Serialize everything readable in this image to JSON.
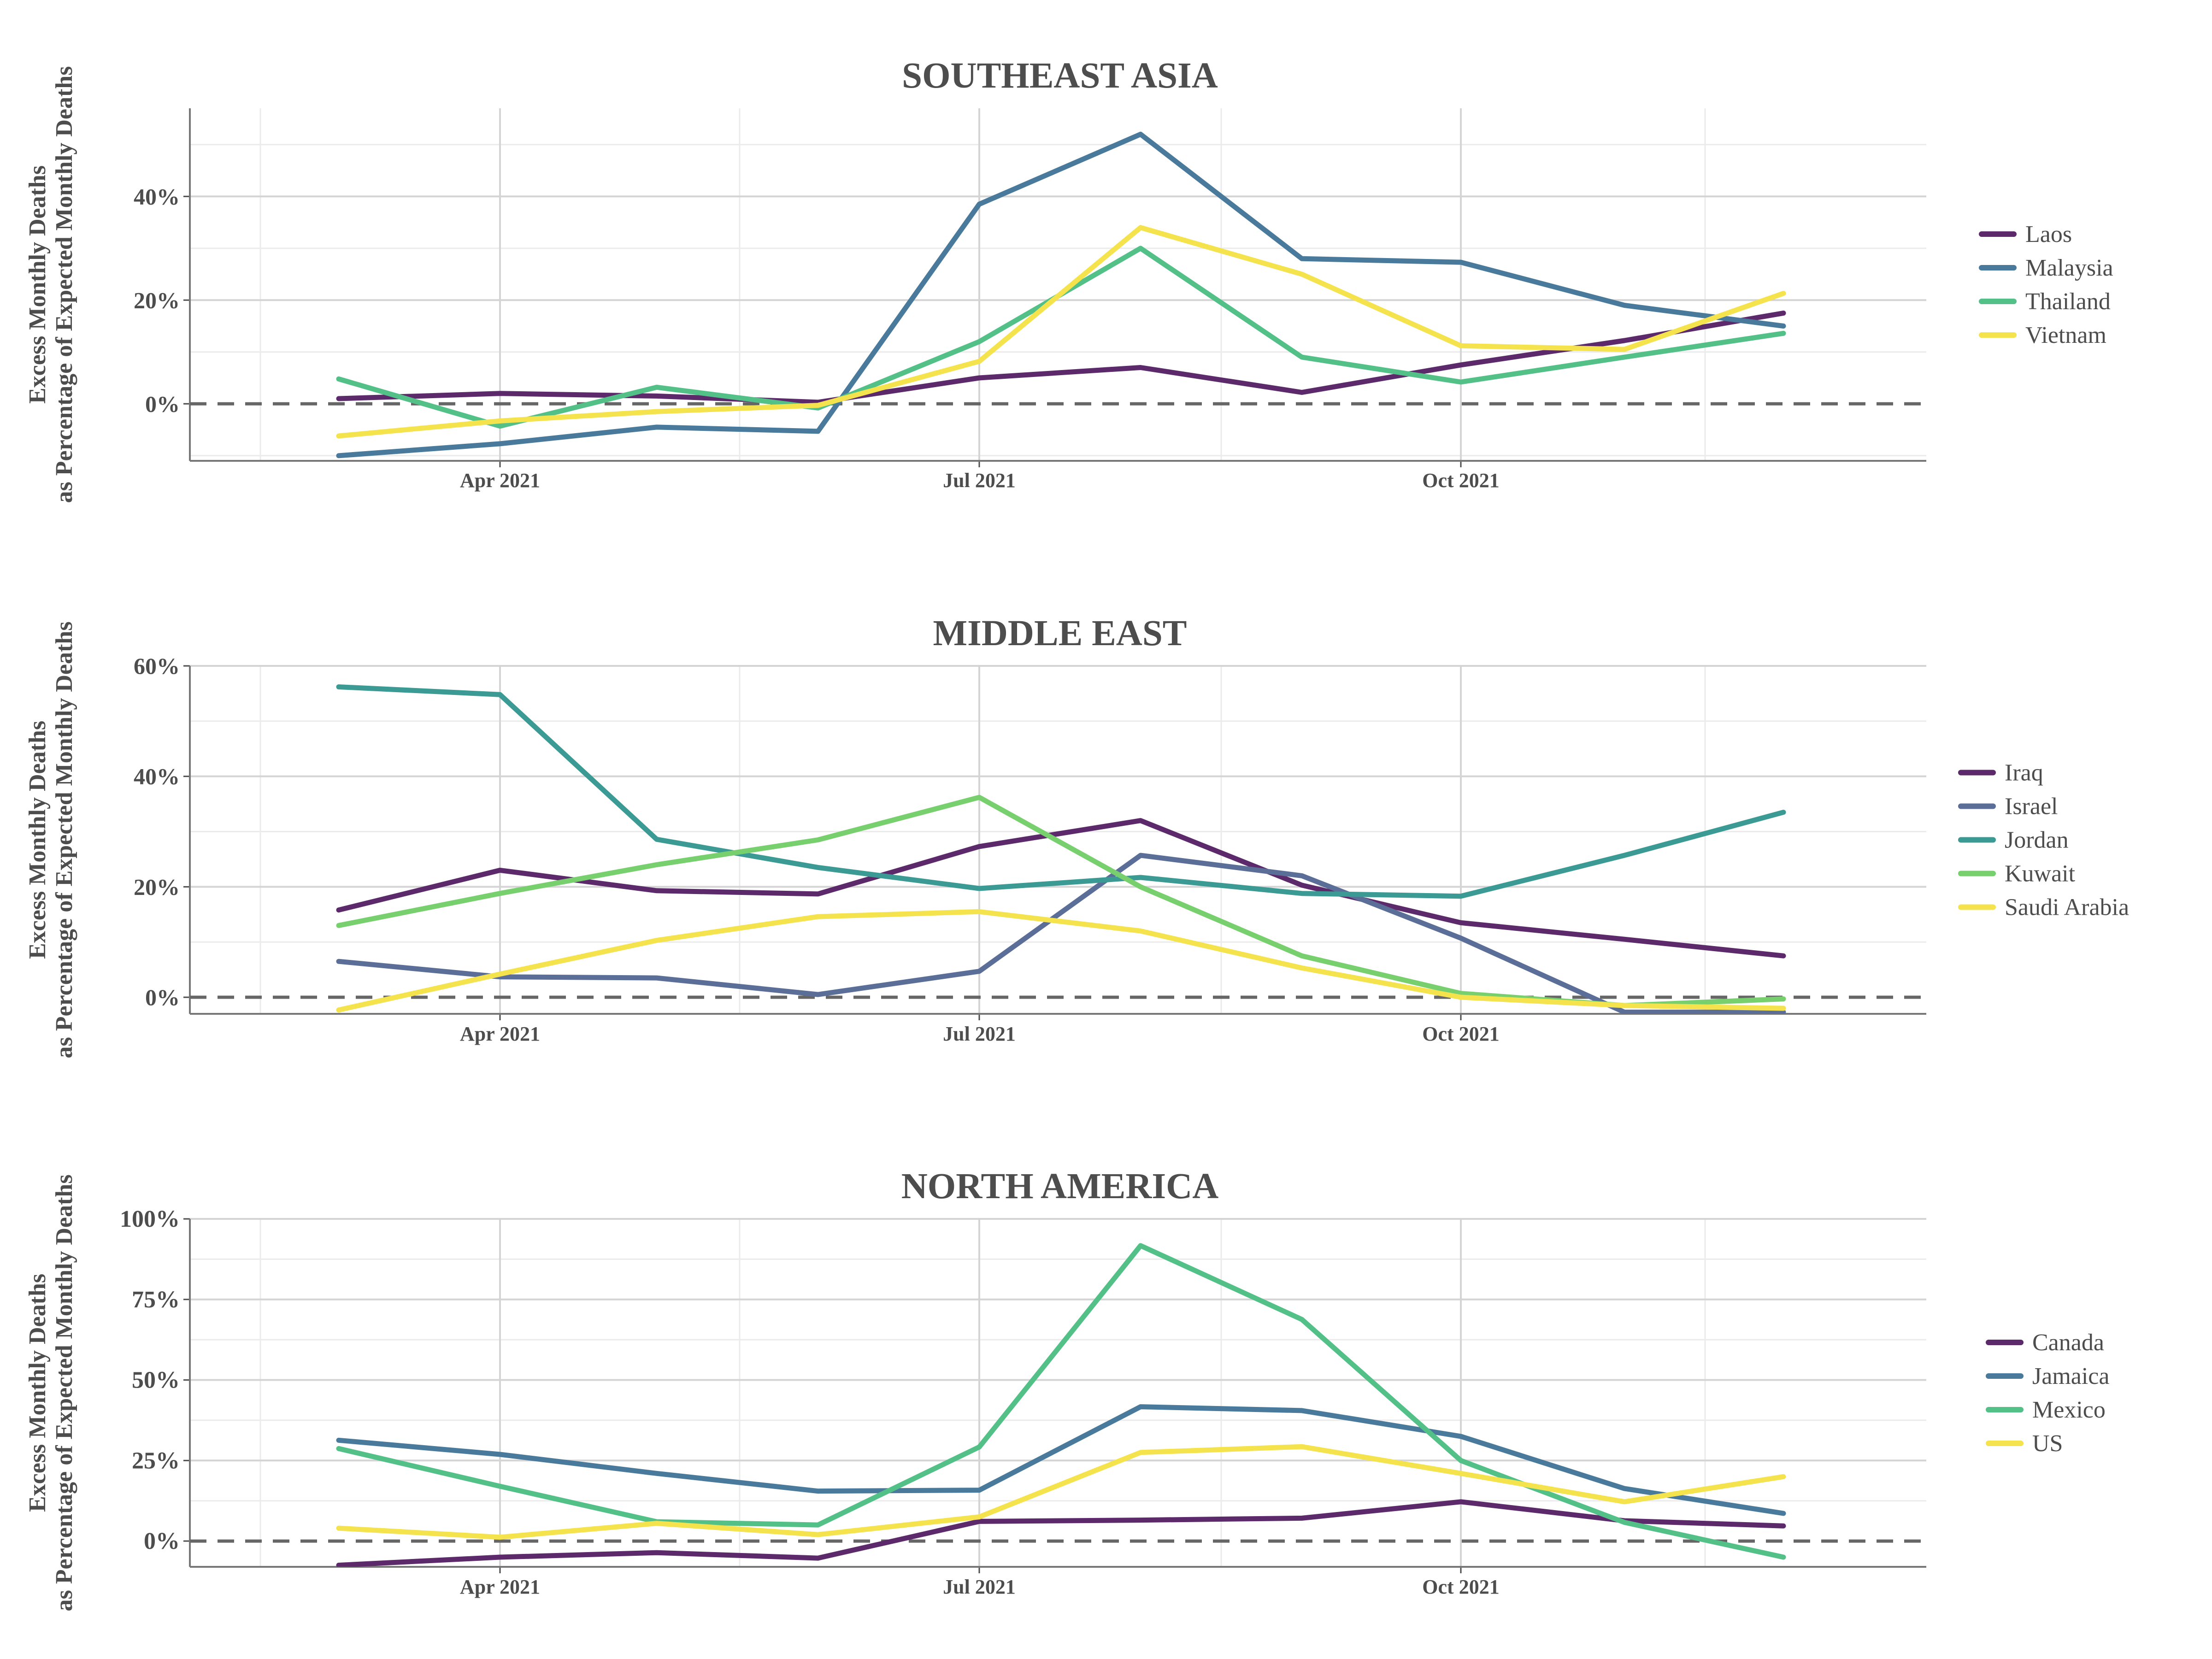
{
  "chart_data": [
    {
      "type": "line",
      "title": "SOUTHEAST ASIA",
      "ylabel": "Excess Monthly Deaths\nas Percentage of Expected Monthly Deaths",
      "xlabel": "",
      "x": [
        "2021-03-01",
        "2021-04-01",
        "2021-05-01",
        "2021-06-01",
        "2021-07-01",
        "2021-08-01",
        "2021-09-01",
        "2021-10-01",
        "2021-11-01",
        "2021-12-01"
      ],
      "xticks": [
        {
          "date": "2021-04-01",
          "label": "Apr 2021"
        },
        {
          "date": "2021-07-01",
          "label": "Jul 2021"
        },
        {
          "date": "2021-10-01",
          "label": "Oct 2021"
        }
      ],
      "yticks": [
        {
          "value": 0,
          "label": "0%"
        },
        {
          "value": 20,
          "label": "20%"
        },
        {
          "value": 40,
          "label": "40%"
        }
      ],
      "ylim": [
        -11,
        57
      ],
      "grid": true,
      "zero_line": "dashed",
      "legend_position": "right",
      "series": [
        {
          "name": "Laos",
          "color": "#5c2a6b",
          "values": [
            1,
            2,
            1.5,
            0.3,
            5,
            7,
            2.2,
            7.5,
            12.2,
            17.5
          ]
        },
        {
          "name": "Malaysia",
          "color": "#4a7a9b",
          "values": [
            -10,
            -7.7,
            -4.5,
            -5.3,
            38.5,
            52,
            28,
            27.3,
            19,
            15
          ]
        },
        {
          "name": "Thailand",
          "color": "#52c087",
          "values": [
            4.8,
            -4.3,
            3.2,
            -0.8,
            12,
            30,
            9,
            4.2,
            9,
            13.6
          ]
        },
        {
          "name": "Vietnam",
          "color": "#f5e34e",
          "values": [
            -6.2,
            -3.3,
            -1.5,
            -0.3,
            8.2,
            34,
            25,
            11.2,
            10.5,
            21.3
          ]
        }
      ]
    },
    {
      "type": "line",
      "title": "MIDDLE EAST",
      "ylabel": "Excess Monthly Deaths\nas Percentage of Expected Monthly Deaths",
      "xlabel": "",
      "x": [
        "2021-03-01",
        "2021-04-01",
        "2021-05-01",
        "2021-06-01",
        "2021-07-01",
        "2021-08-01",
        "2021-09-01",
        "2021-10-01",
        "2021-11-01",
        "2021-12-01"
      ],
      "xticks": [
        {
          "date": "2021-04-01",
          "label": "Apr 2021"
        },
        {
          "date": "2021-07-01",
          "label": "Jul 2021"
        },
        {
          "date": "2021-10-01",
          "label": "Oct 2021"
        }
      ],
      "yticks": [
        {
          "value": 0,
          "label": "0%"
        },
        {
          "value": 20,
          "label": "20%"
        },
        {
          "value": 40,
          "label": "40%"
        },
        {
          "value": 60,
          "label": "60%"
        }
      ],
      "ylim": [
        -3,
        60
      ],
      "grid": true,
      "zero_line": "dashed",
      "legend_position": "right",
      "series": [
        {
          "name": "Iraq",
          "color": "#5c2a6b",
          "values": [
            15.8,
            23,
            19.3,
            18.7,
            27.3,
            32,
            20.3,
            13.5,
            10.5,
            7.5
          ]
        },
        {
          "name": "Israel",
          "color": "#5a6e98",
          "values": [
            6.5,
            3.7,
            3.5,
            0.5,
            4.7,
            25.7,
            22,
            10.7,
            -2.7,
            -2.7
          ]
        },
        {
          "name": "Jordan",
          "color": "#3b9a93",
          "values": [
            56.2,
            54.8,
            28.6,
            23.5,
            19.7,
            21.7,
            18.8,
            18.3,
            25.7,
            33.5
          ]
        },
        {
          "name": "Kuwait",
          "color": "#78cf6e",
          "values": [
            13,
            18.8,
            24,
            28.5,
            36.2,
            20,
            7.5,
            0.7,
            -1.5,
            -0.3
          ]
        },
        {
          "name": "Saudi Arabia",
          "color": "#f5e34e",
          "values": [
            -2.3,
            4.2,
            10.3,
            14.6,
            15.5,
            12,
            5.3,
            0,
            -1.5,
            -2
          ]
        }
      ]
    },
    {
      "type": "line",
      "title": "NORTH AMERICA",
      "ylabel": "Excess Monthly Deaths\nas Percentage of Expected Monthly Deaths",
      "xlabel": "",
      "x": [
        "2021-03-01",
        "2021-04-01",
        "2021-05-01",
        "2021-06-01",
        "2021-07-01",
        "2021-08-01",
        "2021-09-01",
        "2021-10-01",
        "2021-11-01",
        "2021-12-01"
      ],
      "xticks": [
        {
          "date": "2021-04-01",
          "label": "Apr 2021"
        },
        {
          "date": "2021-07-01",
          "label": "Jul 2021"
        },
        {
          "date": "2021-10-01",
          "label": "Oct 2021"
        }
      ],
      "yticks": [
        {
          "value": 0,
          "label": "0%"
        },
        {
          "value": 25,
          "label": "25%"
        },
        {
          "value": 50,
          "label": "50%"
        },
        {
          "value": 75,
          "label": "75%"
        },
        {
          "value": 100,
          "label": "100%"
        }
      ],
      "ylim": [
        -8,
        100
      ],
      "grid": true,
      "zero_line": "dashed",
      "legend_position": "right",
      "series": [
        {
          "name": "Canada",
          "color": "#5c2a6b",
          "values": [
            -7.5,
            -5,
            -3.6,
            -5.3,
            6.1,
            6.5,
            7.1,
            12.2,
            6.3,
            4.7
          ]
        },
        {
          "name": "Jamaica",
          "color": "#4a7a9b",
          "values": [
            31.3,
            26.9,
            21,
            15.5,
            15.8,
            41.7,
            40.5,
            32.5,
            16.3,
            8.6
          ]
        },
        {
          "name": "Mexico",
          "color": "#52c087",
          "values": [
            28.7,
            17,
            6,
            5,
            29.2,
            91.7,
            68.8,
            25,
            5.8,
            -5
          ]
        },
        {
          "name": "US",
          "color": "#f5e34e",
          "values": [
            4,
            1.2,
            5.5,
            2,
            7.5,
            27.5,
            29.3,
            21,
            12.2,
            20
          ]
        }
      ]
    }
  ]
}
